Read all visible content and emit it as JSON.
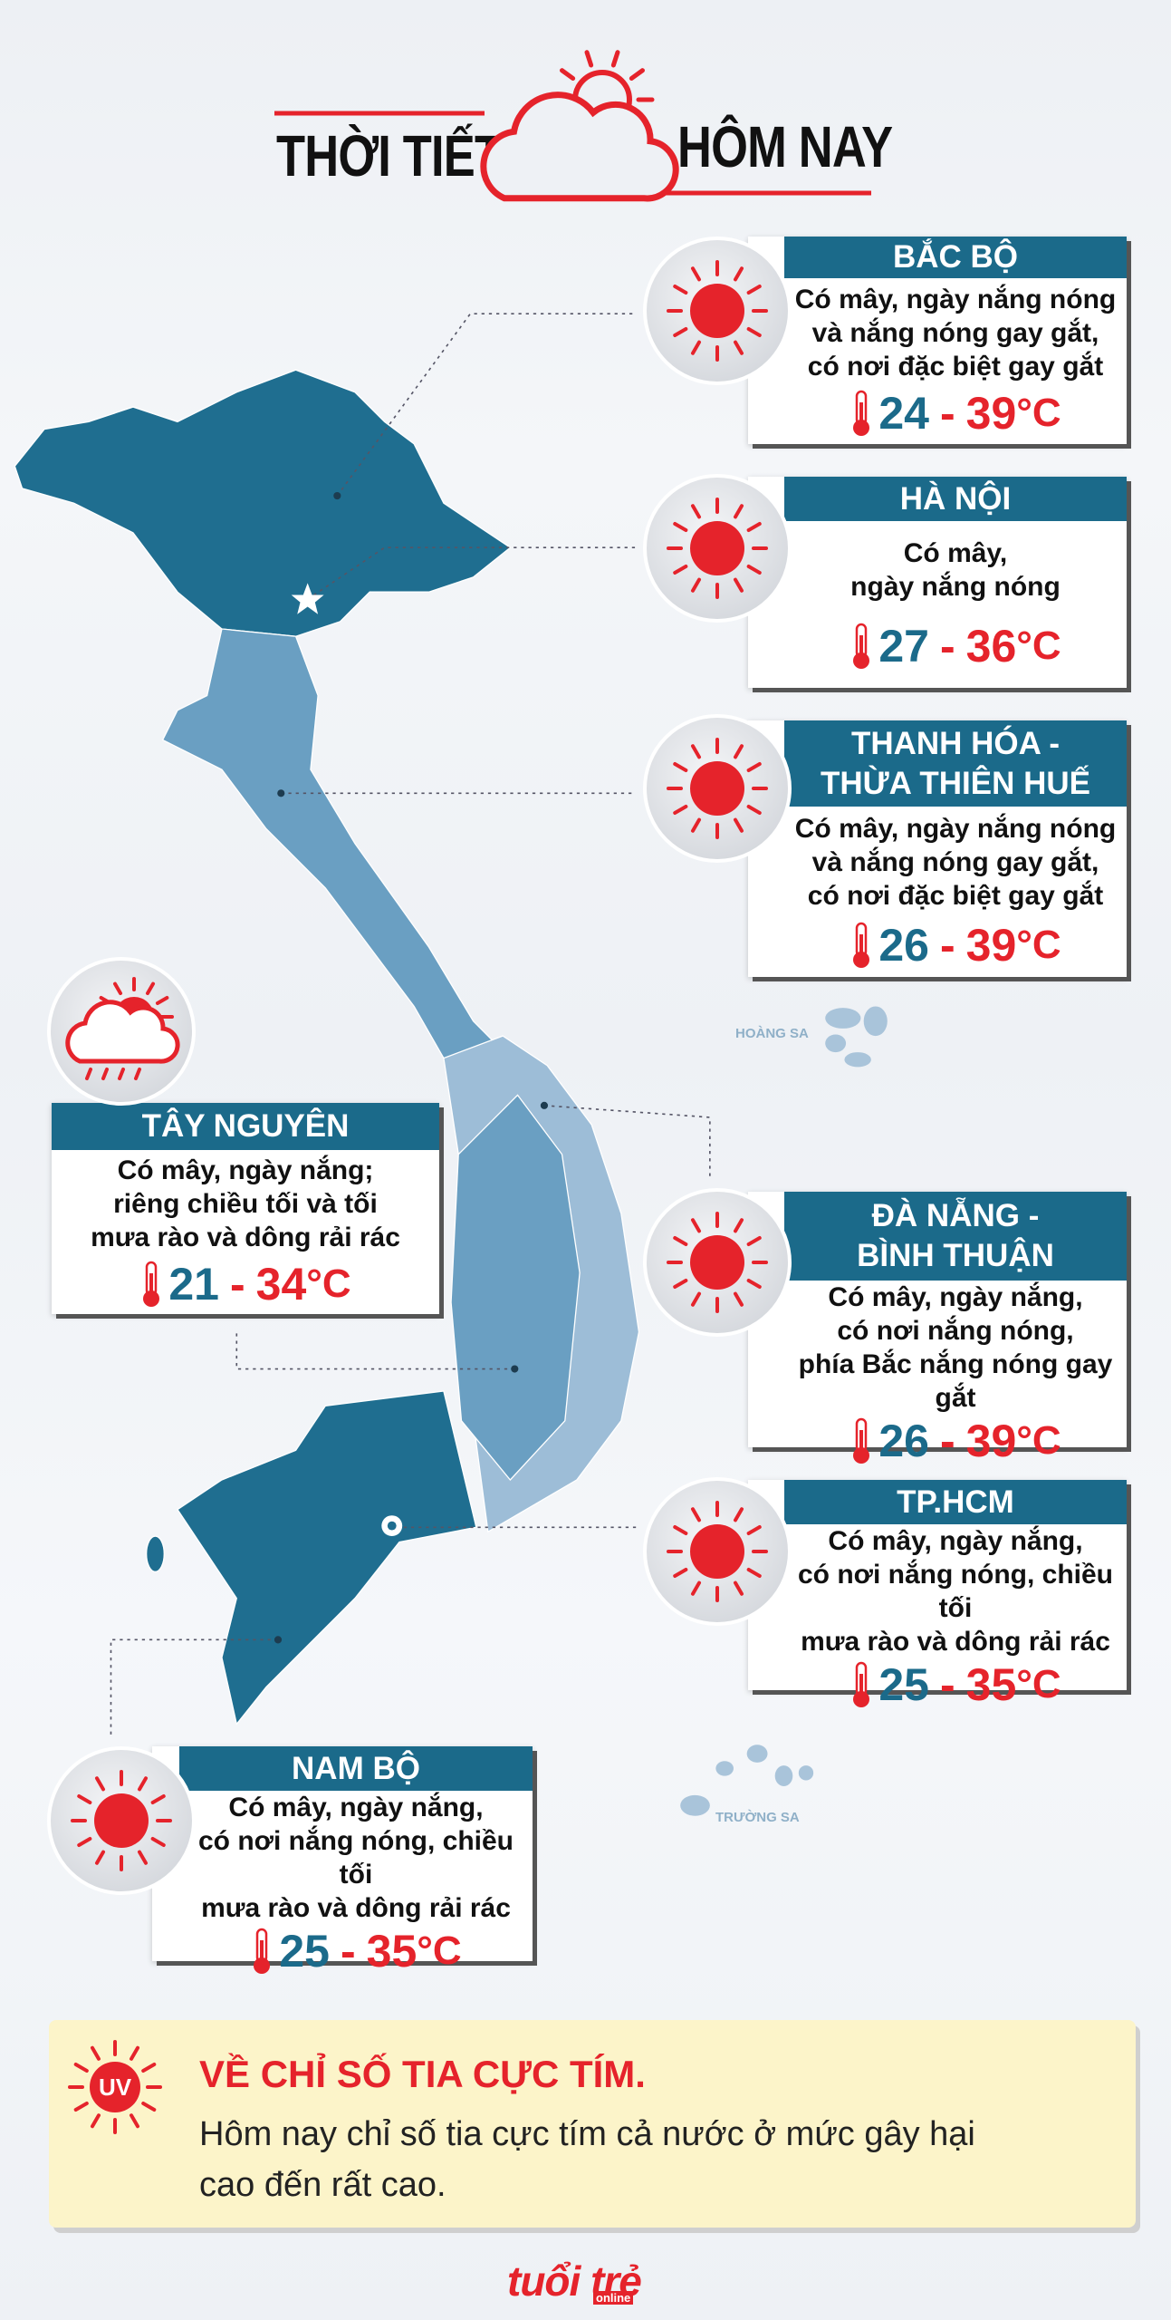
{
  "header": {
    "title_left": "THỜI TIẾT",
    "title_right": "HÔM NAY"
  },
  "unit": "°C",
  "separator": "-",
  "regions": [
    {
      "name": [
        "BẮC BỘ"
      ],
      "description": [
        "Có mây, ngày nắng nóng",
        "và nắng nóng gay gắt,",
        "có nơi đặc biệt gay gắt"
      ],
      "low": 24,
      "high": 39
    },
    {
      "name": [
        "HÀ NỘI"
      ],
      "description": [
        "Có mây,",
        "ngày nắng nóng"
      ],
      "low": 27,
      "high": 36
    },
    {
      "name": [
        "THANH HÓA -",
        "THỪA THIÊN HUẾ"
      ],
      "description": [
        "Có mây, ngày nắng nóng",
        "và nắng nóng gay gắt,",
        "có nơi đặc biệt gay gắt"
      ],
      "low": 26,
      "high": 39
    },
    {
      "name": [
        "TÂY NGUYÊN"
      ],
      "description": [
        "Có mây, ngày nắng;",
        "riêng chiều tối và tối",
        "mưa rào và dông rải rác"
      ],
      "low": 21,
      "high": 34
    },
    {
      "name": [
        "ĐÀ NẴNG -",
        "BÌNH THUẬN"
      ],
      "description": [
        "Có mây, ngày nắng,",
        "có nơi nắng nóng,",
        "phía Bắc nắng nóng gay gắt"
      ],
      "low": 26,
      "high": 39
    },
    {
      "name": [
        "TP.HCM"
      ],
      "description": [
        "Có mây, ngày nắng,",
        "có nơi nắng nóng, chiều tối",
        "mưa rào và dông rải rác"
      ],
      "low": 25,
      "high": 35
    },
    {
      "name": [
        "NAM BỘ"
      ],
      "description": [
        "Có mây, ngày nắng,",
        "có nơi nắng nóng, chiều tối",
        "mưa rào và dông rải rác"
      ],
      "low": 25,
      "high": 35
    }
  ],
  "map_labels": [
    "HOÀNG SA",
    "TRƯỜNG SA"
  ],
  "uv": {
    "icon_label": "UV",
    "title": "VỀ CHỈ SỐ TIA CỰC TÍM.",
    "body": [
      "Hôm nay chỉ số tia cực tím cả nước ở mức gây hại",
      "cao đến rất cao."
    ]
  },
  "logo": {
    "brand": "tuổi trẻ",
    "sub": "online"
  }
}
